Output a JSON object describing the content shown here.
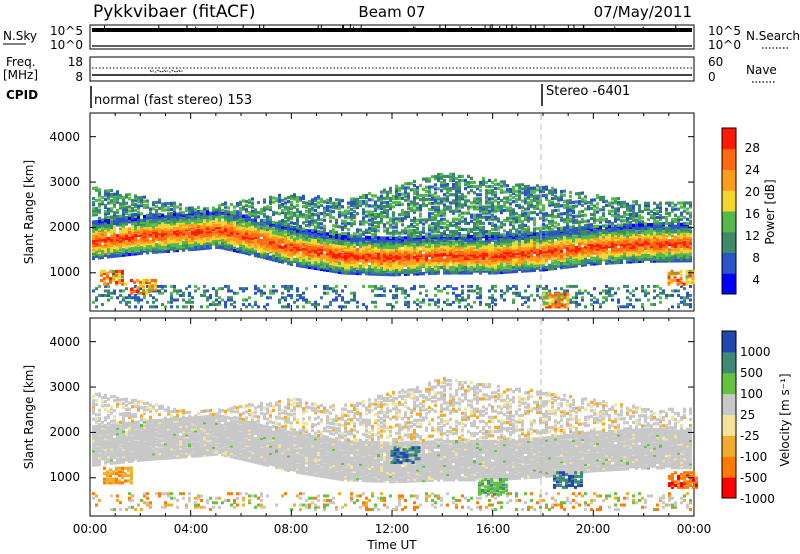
{
  "header": {
    "title": "Pykkvibaer (fitACF)",
    "beam": "Beam 07",
    "date": "07/May/2011"
  },
  "nsky_panel": {
    "label": "N.Sky",
    "left_ticks": [
      "10^5",
      "10^0"
    ],
    "right_ticks": [
      "10^5",
      "10^0"
    ],
    "right_label": "N.Search"
  },
  "freq_panel": {
    "label_line1": "Freq.",
    "label_line2": "[MHz]",
    "left_ticks": [
      "18",
      "8"
    ],
    "right_ticks": [
      "60",
      "0"
    ],
    "right_label": "Nave"
  },
  "cpid_row": {
    "label": "CPID",
    "mode_text": "normal (fast stereo) 153",
    "stereo_text": "Stereo -6401"
  },
  "power_panel": {
    "ylabel": "Slant Range [km]",
    "y_ticks": [
      "4000",
      "3000",
      "2000",
      "1000"
    ],
    "colorbar_label": "Power [dB]",
    "colorbar_ticks": [
      "28",
      "24",
      "20",
      "16",
      "12",
      "8",
      "4"
    ]
  },
  "velocity_panel": {
    "ylabel": "Slant Range [km]",
    "y_ticks": [
      "4000",
      "3000",
      "2000",
      "1000"
    ],
    "colorbar_label": "Velocity [m s⁻¹]",
    "colorbar_ticks": [
      "1000",
      "500",
      "100",
      "25",
      "-25",
      "-100",
      "-500",
      "-1000"
    ]
  },
  "x_axis": {
    "label": "Time UT",
    "ticks": [
      "00:00",
      "04:00",
      "08:00",
      "12:00",
      "16:00",
      "20:00",
      "00:00"
    ]
  },
  "colors": {
    "power_scale": [
      "#0000ff",
      "#2a55c8",
      "#3d8a6a",
      "#55b84a",
      "#f2d62c",
      "#ff9c1c",
      "#ff6a10",
      "#ff1a00"
    ],
    "velocity_scale": [
      "#ff0000",
      "#ff7b00",
      "#f0ad2c",
      "#f6e39a",
      "#c8c8c8",
      "#63c33f",
      "#3f8a77",
      "#2048b0"
    ]
  },
  "chart_data": [
    {
      "type": "line",
      "panel": "N.Sky / N.Search",
      "x_range": [
        "00:00",
        "24:00"
      ],
      "y_scale": "log",
      "y_range": [
        "10^0",
        "10^5"
      ],
      "series": [
        {
          "name": "N.Sky",
          "approx_level": "10^5"
        },
        {
          "name": "N.Search",
          "approx_level": "10^5"
        }
      ]
    },
    {
      "type": "line",
      "panel": "Freq. / Nave",
      "x_range": [
        "00:00",
        "24:00"
      ],
      "left_axis": {
        "label": "Freq. [MHz]",
        "range": [
          8,
          18
        ]
      },
      "right_axis": {
        "label": "Nave",
        "range": [
          0,
          60
        ]
      },
      "series": [
        {
          "name": "Freq.",
          "approx_value_mhz": 10
        },
        {
          "name": "Nave",
          "approx_value": 36
        }
      ]
    },
    {
      "type": "heatmap",
      "panel": "Power",
      "x_range_hours": [
        0,
        24
      ],
      "y_range_km": [
        180,
        4500
      ],
      "colorbar": {
        "label": "Power [dB]",
        "ticks": [
          4,
          8,
          12,
          16,
          20,
          24,
          28
        ],
        "range": [
          0,
          32
        ]
      },
      "main_band_center_km": [
        [
          0,
          1700
        ],
        [
          2,
          1820
        ],
        [
          4,
          1900
        ],
        [
          5,
          1950
        ],
        [
          6,
          1830
        ],
        [
          8,
          1560
        ],
        [
          10,
          1380
        ],
        [
          12,
          1340
        ],
        [
          14,
          1380
        ],
        [
          16,
          1380
        ],
        [
          18,
          1450
        ],
        [
          20,
          1580
        ],
        [
          22,
          1640
        ],
        [
          24,
          1650
        ]
      ],
      "upper_echo_km": [
        [
          0,
          2900
        ],
        [
          4,
          2450
        ],
        [
          8,
          2750
        ],
        [
          10,
          2600
        ],
        [
          14,
          3200
        ],
        [
          18,
          2900
        ],
        [
          22,
          2550
        ]
      ],
      "low_echo_patches_km": [
        [
          0.8,
          900
        ],
        [
          2.0,
          700
        ],
        [
          18.5,
          400
        ],
        [
          23.5,
          900
        ]
      ]
    },
    {
      "type": "heatmap",
      "panel": "Velocity",
      "x_range_hours": [
        0,
        24
      ],
      "y_range_km": [
        180,
        4500
      ],
      "colorbar": {
        "label": "Velocity [m s⁻¹]",
        "ticks": [
          1000,
          500,
          100,
          25,
          -25,
          -100,
          -500,
          -1000
        ],
        "range": [
          -1500,
          1500
        ]
      },
      "dominant_value_m_s": "between -25 and 25",
      "notable_negative_patches": [
        [
          1.0,
          1050,
          -500
        ],
        [
          23.6,
          950,
          -1000
        ]
      ],
      "notable_positive_patches": [
        [
          12.5,
          1500,
          500
        ],
        [
          16.0,
          800,
          100
        ],
        [
          19.0,
          950,
          500
        ]
      ]
    }
  ]
}
